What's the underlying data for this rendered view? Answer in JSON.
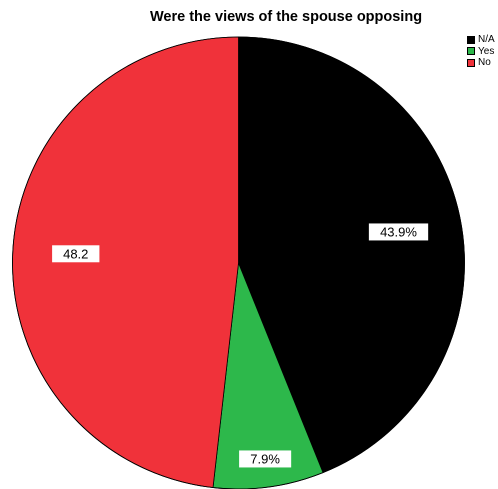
{
  "chart_data": {
    "type": "pie",
    "title": "Were the views of the spouse opposing",
    "start_angle_deg": 0,
    "direction": "clockwise",
    "legend_position": "top-right",
    "slices": [
      {
        "name": "N/A",
        "value": 43.9,
        "label": "43.9%",
        "color": "#000000"
      },
      {
        "name": "Yes",
        "value": 7.9,
        "label": "7.9%",
        "color": "#2db84b"
      },
      {
        "name": "No",
        "value": 48.2,
        "label": "48.2",
        "color": "#f0323a"
      }
    ]
  }
}
